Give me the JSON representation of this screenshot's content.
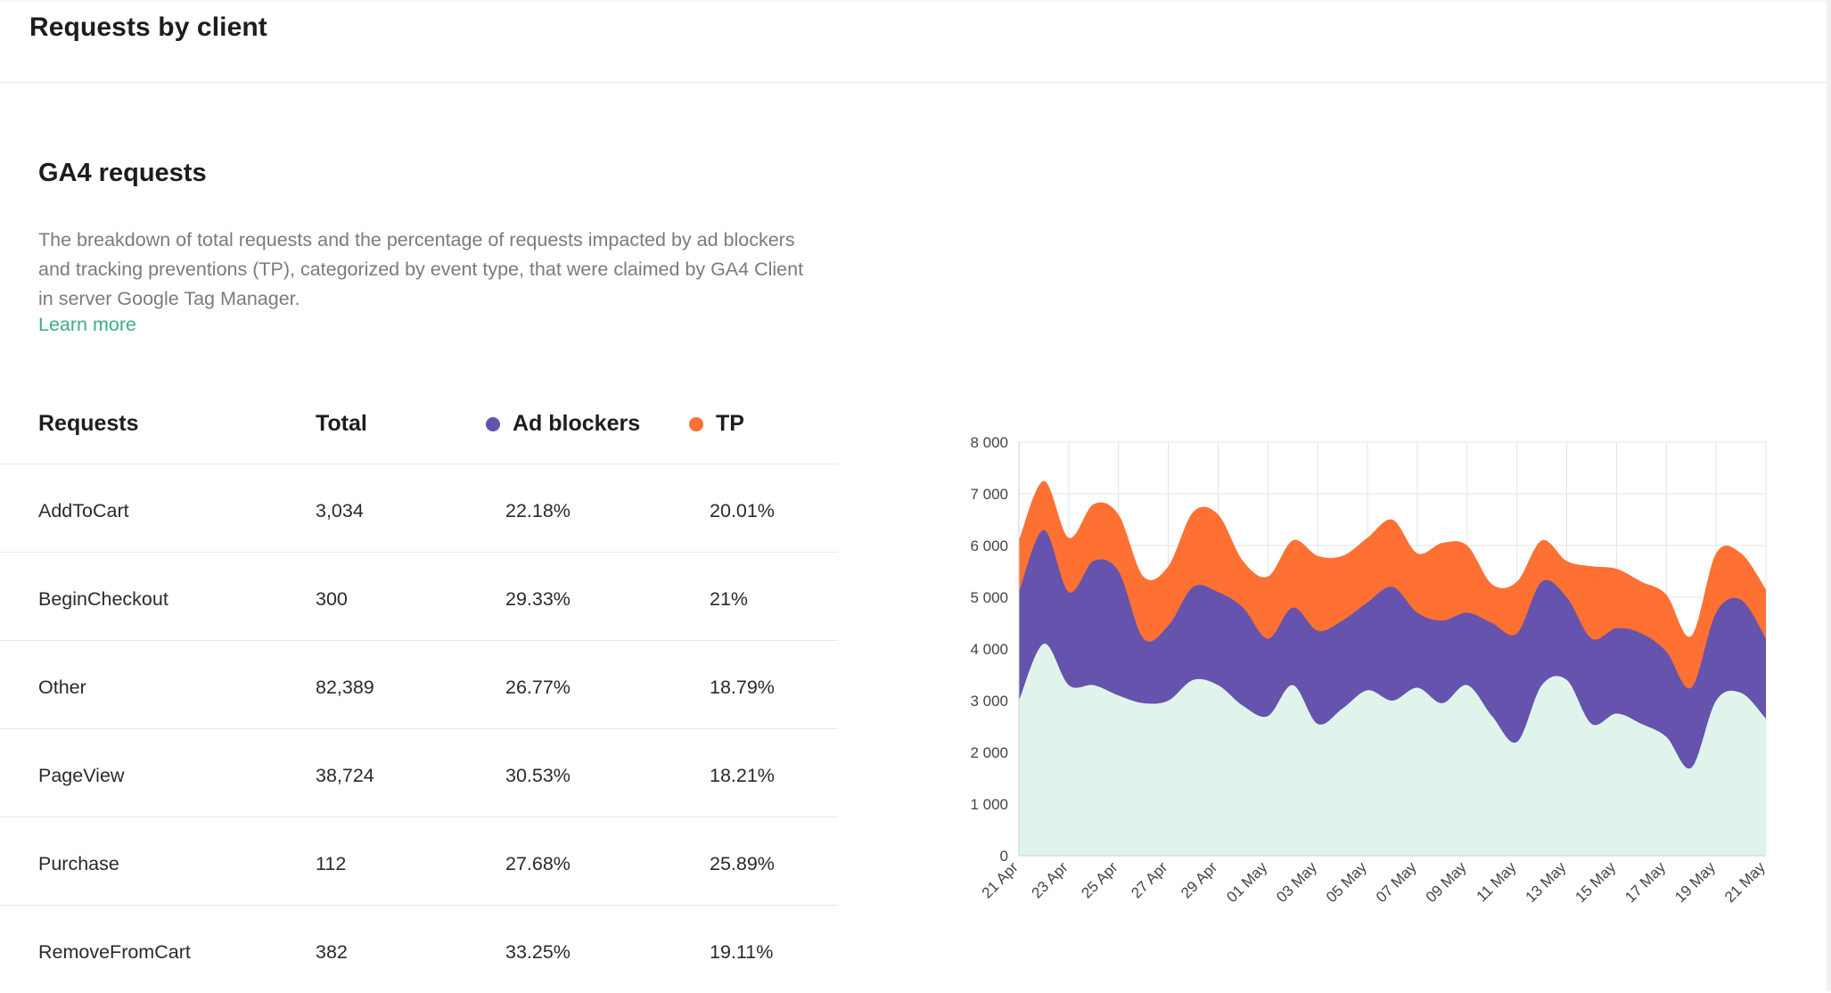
{
  "header": {
    "title": "Requests by client"
  },
  "card": {
    "title": "GA4 requests",
    "description": "The breakdown of total requests and the percentage of requests impacted by ad blockers and tracking preventions (TP), categorized by event type, that were claimed by GA4 Client in server Google Tag Manager.",
    "learn_more": "Learn more"
  },
  "table": {
    "headers": [
      "Requests",
      "Total",
      "Ad blockers",
      "TP"
    ],
    "rows": [
      [
        "AddToCart",
        "3,034",
        "22.18%",
        "20.01%"
      ],
      [
        "BeginCheckout",
        "300",
        "29.33%",
        "21%"
      ],
      [
        "Other",
        "82,389",
        "26.77%",
        "18.79%"
      ],
      [
        "PageView",
        "38,724",
        "30.53%",
        "18.21%"
      ],
      [
        "Purchase",
        "112",
        "27.68%",
        "25.89%"
      ],
      [
        "RemoveFromCart",
        "382",
        "33.25%",
        "19.11%"
      ]
    ]
  },
  "colors": {
    "ad_blockers": "#6553ad",
    "tp": "#ff7033",
    "base": "#e1f4ec",
    "link": "#3fae7f"
  },
  "chart_data": {
    "type": "area",
    "stacked": true,
    "x": [
      "21 Apr",
      "22 Apr",
      "23 Apr",
      "24 Apr",
      "25 Apr",
      "26 Apr",
      "27 Apr",
      "28 Apr",
      "29 Apr",
      "30 Apr",
      "01 May",
      "02 May",
      "03 May",
      "04 May",
      "05 May",
      "06 May",
      "07 May",
      "08 May",
      "09 May",
      "10 May",
      "11 May",
      "12 May",
      "13 May",
      "14 May",
      "15 May",
      "16 May",
      "17 May",
      "18 May",
      "19 May",
      "20 May",
      "21 May"
    ],
    "x_tick_labels": [
      "21 Apr",
      "23 Apr",
      "25 Apr",
      "27 Apr",
      "29 Apr",
      "01 May",
      "03 May",
      "05 May",
      "07 May",
      "09 May",
      "11 May",
      "13 May",
      "15 May",
      "17 May",
      "19 May",
      "21 May"
    ],
    "y_ticks": [
      "0",
      "1 000",
      "2 000",
      "3 000",
      "4 000",
      "5 000",
      "6 000",
      "7 000",
      "8 000"
    ],
    "ylim": [
      0,
      8000
    ],
    "grid": true,
    "series": [
      {
        "color": "#e1f4ec",
        "values": [
          3000,
          4100,
          3300,
          3300,
          3100,
          2950,
          3000,
          3400,
          3300,
          2900,
          2700,
          3300,
          2550,
          2850,
          3200,
          3000,
          3250,
          2950,
          3300,
          2700,
          2200,
          3300,
          3400,
          2550,
          2750,
          2550,
          2300,
          1700,
          3000,
          3150,
          2650
        ]
      },
      {
        "color": "#6553ad",
        "values": [
          2100,
          2200,
          1800,
          2400,
          2400,
          1250,
          1450,
          1800,
          1800,
          1900,
          1500,
          1500,
          1800,
          1700,
          1700,
          2200,
          1450,
          1600,
          1400,
          1800,
          2100,
          2000,
          1600,
          1650,
          1650,
          1750,
          1650,
          1550,
          1700,
          1800,
          1550
        ]
      },
      {
        "color": "#ff7033",
        "values": [
          1000,
          950,
          1050,
          1100,
          1100,
          1200,
          1150,
          1450,
          1500,
          900,
          1200,
          1300,
          1450,
          1250,
          1250,
          1300,
          1150,
          1500,
          1300,
          750,
          1000,
          800,
          700,
          1400,
          1150,
          1000,
          1100,
          1000,
          1150,
          900,
          950
        ]
      }
    ]
  }
}
